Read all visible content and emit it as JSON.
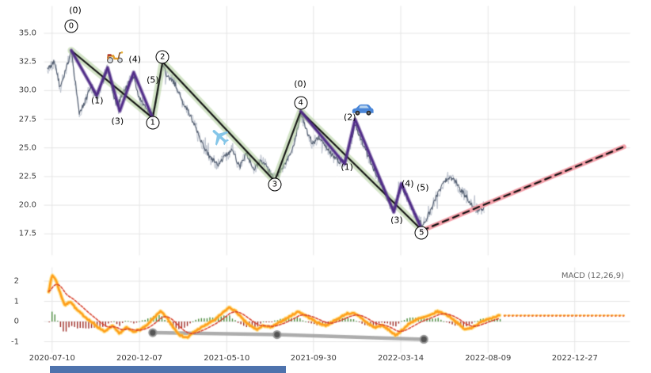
{
  "colors": {
    "wave_purple": "#4f2a87",
    "trend_black": "#111111",
    "trend_glow_green": "#a7c98f",
    "projection_pink": "#f49fa9",
    "price_dark": "#4a5568",
    "price_light": "#b6bdc9",
    "macd_orange": "#ff9f1c",
    "macd_glow": "#ffd24d",
    "signal_red": "#d7402b",
    "hist_green": "#4c8c3f",
    "hist_red": "#9e2b25",
    "gray_overlay": "#9e9e9e",
    "gray_dot": "#555555",
    "grid": "#e5e5e5",
    "footer_bar": "#4e73ad"
  },
  "chart_data": [
    {
      "name": "price-panel",
      "type": "line",
      "title": "",
      "y_ticks": [
        35.0,
        32.5,
        30.0,
        27.5,
        25.0,
        22.5,
        20.0,
        17.5
      ],
      "x_ticks": [
        "2020-07-10",
        "2020-12-07",
        "2021-05-10",
        "2021-09-30",
        "2022-03-14",
        "2022-08-09",
        "2022-12-27"
      ],
      "x_tick_f": [
        0.008,
        0.159,
        0.31,
        0.46,
        0.611,
        0.762,
        0.912
      ],
      "ylim": [
        15.7,
        37.3
      ],
      "price_waypoints": [
        [
          0.0,
          31.8
        ],
        [
          0.012,
          32.6
        ],
        [
          0.022,
          30.2
        ],
        [
          0.03,
          31.5
        ],
        [
          0.041,
          33.4
        ],
        [
          0.048,
          30.8
        ],
        [
          0.055,
          28.0
        ],
        [
          0.065,
          29.0
        ],
        [
          0.075,
          30.4
        ],
        [
          0.085,
          29.4
        ],
        [
          0.095,
          30.8
        ],
        [
          0.104,
          31.9
        ],
        [
          0.112,
          30.0
        ],
        [
          0.12,
          28.6
        ],
        [
          0.13,
          29.8
        ],
        [
          0.14,
          30.6
        ],
        [
          0.149,
          31.3
        ],
        [
          0.158,
          29.4
        ],
        [
          0.168,
          28.7
        ],
        [
          0.175,
          28.2
        ],
        [
          0.182,
          27.8
        ],
        [
          0.19,
          29.6
        ],
        [
          0.199,
          32.3
        ],
        [
          0.208,
          31.2
        ],
        [
          0.22,
          30.6
        ],
        [
          0.232,
          29.2
        ],
        [
          0.245,
          28.0
        ],
        [
          0.258,
          26.6
        ],
        [
          0.27,
          25.1
        ],
        [
          0.282,
          24.1
        ],
        [
          0.295,
          23.5
        ],
        [
          0.308,
          24.3
        ],
        [
          0.32,
          24.9
        ],
        [
          0.332,
          23.3
        ],
        [
          0.344,
          24.5
        ],
        [
          0.356,
          23.1
        ],
        [
          0.368,
          23.9
        ],
        [
          0.38,
          23.3
        ],
        [
          0.393,
          22.2
        ],
        [
          0.404,
          23.1
        ],
        [
          0.418,
          24.3
        ],
        [
          0.428,
          25.6
        ],
        [
          0.438,
          28.0
        ],
        [
          0.448,
          26.6
        ],
        [
          0.458,
          25.4
        ],
        [
          0.47,
          25.9
        ],
        [
          0.482,
          25.0
        ],
        [
          0.495,
          24.2
        ],
        [
          0.505,
          23.8
        ],
        [
          0.514,
          23.8
        ],
        [
          0.524,
          25.4
        ],
        [
          0.532,
          27.1
        ],
        [
          0.542,
          25.8
        ],
        [
          0.552,
          24.6
        ],
        [
          0.562,
          23.4
        ],
        [
          0.572,
          22.4
        ],
        [
          0.582,
          21.2
        ],
        [
          0.592,
          20.2
        ],
        [
          0.599,
          19.7
        ],
        [
          0.606,
          20.8
        ],
        [
          0.612,
          21.7
        ],
        [
          0.62,
          20.9
        ],
        [
          0.63,
          19.8
        ],
        [
          0.64,
          18.8
        ],
        [
          0.648,
          18.3
        ],
        [
          0.656,
          18.9
        ],
        [
          0.665,
          19.8
        ],
        [
          0.675,
          21.0
        ],
        [
          0.685,
          21.9
        ],
        [
          0.695,
          22.5
        ],
        [
          0.705,
          22.1
        ],
        [
          0.715,
          21.3
        ],
        [
          0.725,
          20.7
        ],
        [
          0.735,
          19.9
        ],
        [
          0.745,
          19.5
        ],
        [
          0.755,
          19.8
        ]
      ],
      "trend_path": [
        [
          0.041,
          33.5
        ],
        [
          0.182,
          27.6
        ],
        [
          0.199,
          32.5
        ],
        [
          0.393,
          22.1
        ],
        [
          0.438,
          28.2
        ],
        [
          0.648,
          17.8
        ]
      ],
      "projection": [
        [
          0.648,
          17.8
        ],
        [
          0.997,
          25.1
        ]
      ],
      "impulse_wave_1": [
        [
          0.041,
          33.5
        ],
        [
          0.085,
          29.6
        ],
        [
          0.104,
          32.0
        ],
        [
          0.125,
          28.2
        ],
        [
          0.149,
          31.6
        ],
        [
          0.182,
          27.6
        ]
      ],
      "impulse_wave_2": [
        [
          0.438,
          28.2
        ],
        [
          0.514,
          23.6
        ],
        [
          0.532,
          27.5
        ],
        [
          0.599,
          19.4
        ],
        [
          0.612,
          21.9
        ],
        [
          0.648,
          17.8
        ]
      ],
      "circled_labels": [
        {
          "t": "0",
          "f": 0.041,
          "v": 35.6
        },
        {
          "t": "1",
          "f": 0.182,
          "v": 27.2
        },
        {
          "t": "2",
          "f": 0.199,
          "v": 32.9
        },
        {
          "t": "3",
          "f": 0.393,
          "v": 21.8
        },
        {
          "t": "4",
          "f": 0.438,
          "v": 28.9
        },
        {
          "t": "5",
          "f": 0.647,
          "v": 17.6
        }
      ],
      "paren_labels": [
        {
          "t": "(0)",
          "f": 0.048,
          "v": 37.0
        },
        {
          "t": "(1)",
          "f": 0.086,
          "v": 29.1
        },
        {
          "t": "(3)",
          "f": 0.121,
          "v": 27.3
        },
        {
          "t": "(4)",
          "f": 0.151,
          "v": 32.7
        },
        {
          "t": "(5)",
          "f": 0.182,
          "v": 30.9
        },
        {
          "t": "(0)",
          "f": 0.437,
          "v": 30.6
        },
        {
          "t": "(1)",
          "f": 0.518,
          "v": 23.3
        },
        {
          "t": "(2)",
          "f": 0.523,
          "v": 27.7
        },
        {
          "t": "(3)",
          "f": 0.604,
          "v": 18.7
        },
        {
          "t": "(4)",
          "f": 0.623,
          "v": 21.9
        },
        {
          "t": "(5)",
          "f": 0.649,
          "v": 21.5
        }
      ],
      "icons": [
        {
          "name": "scooter-icon",
          "f": 0.116,
          "v": 33.1
        },
        {
          "name": "plane-icon",
          "f": 0.299,
          "v": 26.0
        },
        {
          "name": "car-icon",
          "f": 0.545,
          "v": 28.4
        }
      ]
    },
    {
      "name": "macd-panel",
      "type": "line",
      "label": "MACD (12,26,9)",
      "y_ticks": [
        2,
        1,
        0,
        -1
      ],
      "macd_waypoints": [
        [
          0.002,
          1.5
        ],
        [
          0.008,
          2.3
        ],
        [
          0.014,
          2.1
        ],
        [
          0.022,
          1.4
        ],
        [
          0.03,
          0.8
        ],
        [
          0.04,
          1.0
        ],
        [
          0.05,
          0.6
        ],
        [
          0.062,
          0.3
        ],
        [
          0.075,
          0.0
        ],
        [
          0.088,
          -0.3
        ],
        [
          0.1,
          -0.5
        ],
        [
          0.112,
          -0.2
        ],
        [
          0.124,
          -0.6
        ],
        [
          0.136,
          -0.3
        ],
        [
          0.148,
          -0.5
        ],
        [
          0.16,
          -0.4
        ],
        [
          0.172,
          -0.2
        ],
        [
          0.184,
          0.2
        ],
        [
          0.196,
          0.5
        ],
        [
          0.206,
          0.2
        ],
        [
          0.218,
          -0.3
        ],
        [
          0.23,
          -0.7
        ],
        [
          0.242,
          -0.8
        ],
        [
          0.254,
          -0.5
        ],
        [
          0.266,
          -0.3
        ],
        [
          0.278,
          -0.1
        ],
        [
          0.29,
          0.1
        ],
        [
          0.302,
          0.4
        ],
        [
          0.314,
          0.7
        ],
        [
          0.326,
          0.5
        ],
        [
          0.338,
          0.1
        ],
        [
          0.35,
          -0.2
        ],
        [
          0.362,
          -0.4
        ],
        [
          0.374,
          -0.2
        ],
        [
          0.386,
          -0.3
        ],
        [
          0.398,
          -0.1
        ],
        [
          0.41,
          0.1
        ],
        [
          0.422,
          0.3
        ],
        [
          0.434,
          0.5
        ],
        [
          0.446,
          0.3
        ],
        [
          0.458,
          0.1
        ],
        [
          0.47,
          -0.1
        ],
        [
          0.482,
          -0.2
        ],
        [
          0.494,
          0.0
        ],
        [
          0.506,
          0.2
        ],
        [
          0.518,
          0.4
        ],
        [
          0.53,
          0.4
        ],
        [
          0.542,
          0.2
        ],
        [
          0.554,
          -0.1
        ],
        [
          0.566,
          -0.3
        ],
        [
          0.578,
          -0.2
        ],
        [
          0.59,
          -0.4
        ],
        [
          0.602,
          -0.7
        ],
        [
          0.614,
          -0.4
        ],
        [
          0.626,
          -0.1
        ],
        [
          0.638,
          0.1
        ],
        [
          0.65,
          0.2
        ],
        [
          0.662,
          0.3
        ],
        [
          0.674,
          0.5
        ],
        [
          0.686,
          0.4
        ],
        [
          0.698,
          0.2
        ],
        [
          0.71,
          -0.1
        ],
        [
          0.722,
          -0.4
        ],
        [
          0.734,
          -0.3
        ],
        [
          0.746,
          -0.1
        ],
        [
          0.758,
          0.1
        ],
        [
          0.77,
          0.2
        ],
        [
          0.782,
          0.3
        ]
      ],
      "flat_projection": {
        "from_f": 0.79,
        "to_f": 0.997,
        "value": 0.3
      },
      "gray_line": [
        [
          0.182,
          -0.55
        ],
        [
          0.397,
          -0.65
        ],
        [
          0.651,
          -0.88
        ]
      ]
    }
  ]
}
